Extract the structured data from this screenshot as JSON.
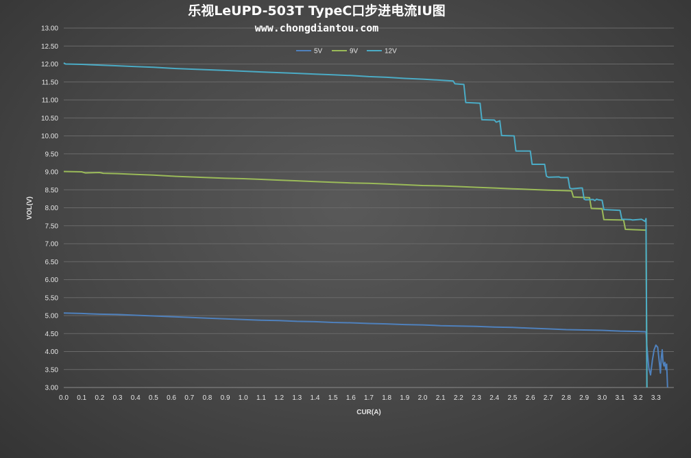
{
  "page": {
    "title": "乐视LeUPD-503T TypeC口步进电流IU图",
    "subtitle": "www.chongdiantou.com"
  },
  "chart_data": {
    "type": "line",
    "title": "乐视LeUPD-503T TypeC口步进电流IU图",
    "xlabel": "CUR(A)",
    "ylabel": "VOL(V)",
    "xlim": [
      0.0,
      3.4
    ],
    "ylim": [
      3.0,
      13.0
    ],
    "grid": true,
    "legend_position": "top-center",
    "x_ticks": [
      "0.0",
      "0.1",
      "0.2",
      "0.3",
      "0.4",
      "0.5",
      "0.6",
      "0.7",
      "0.8",
      "0.9",
      "1.0",
      "1.1",
      "1.2",
      "1.3",
      "1.4",
      "1.5",
      "1.6",
      "1.7",
      "1.8",
      "1.9",
      "2.0",
      "2.1",
      "2.2",
      "2.3",
      "2.4",
      "2.5",
      "2.6",
      "2.7",
      "2.8",
      "2.9",
      "3.0",
      "3.1",
      "3.2",
      "3.3"
    ],
    "y_ticks": [
      "3.00",
      "3.50",
      "4.00",
      "4.50",
      "5.00",
      "5.50",
      "6.00",
      "6.50",
      "7.00",
      "7.50",
      "8.00",
      "8.50",
      "9.00",
      "9.50",
      "10.00",
      "10.50",
      "11.00",
      "11.50",
      "12.00",
      "12.50",
      "13.00"
    ],
    "series": [
      {
        "name": "5V",
        "color": "#4f81bd",
        "points": [
          [
            0.0,
            5.07
          ],
          [
            0.1,
            5.06
          ],
          [
            0.2,
            5.04
          ],
          [
            0.3,
            5.03
          ],
          [
            0.4,
            5.01
          ],
          [
            0.5,
            4.99
          ],
          [
            0.6,
            4.97
          ],
          [
            0.7,
            4.95
          ],
          [
            0.8,
            4.93
          ],
          [
            0.9,
            4.91
          ],
          [
            1.0,
            4.89
          ],
          [
            1.1,
            4.87
          ],
          [
            1.2,
            4.86
          ],
          [
            1.3,
            4.84
          ],
          [
            1.4,
            4.83
          ],
          [
            1.5,
            4.81
          ],
          [
            1.6,
            4.8
          ],
          [
            1.7,
            4.78
          ],
          [
            1.8,
            4.77
          ],
          [
            1.9,
            4.75
          ],
          [
            2.0,
            4.74
          ],
          [
            2.1,
            4.72
          ],
          [
            2.2,
            4.71
          ],
          [
            2.3,
            4.7
          ],
          [
            2.4,
            4.68
          ],
          [
            2.5,
            4.67
          ],
          [
            2.6,
            4.65
          ],
          [
            2.7,
            4.63
          ],
          [
            2.8,
            4.61
          ],
          [
            2.9,
            4.6
          ],
          [
            3.0,
            4.59
          ],
          [
            3.1,
            4.57
          ],
          [
            3.2,
            4.56
          ],
          [
            3.245,
            4.55
          ],
          [
            3.25,
            4.15
          ],
          [
            3.26,
            3.55
          ],
          [
            3.27,
            3.35
          ],
          [
            3.28,
            3.75
          ],
          [
            3.29,
            4.05
          ],
          [
            3.3,
            4.18
          ],
          [
            3.31,
            4.12
          ],
          [
            3.32,
            3.65
          ],
          [
            3.325,
            3.4
          ],
          [
            3.33,
            3.85
          ],
          [
            3.335,
            4.05
          ],
          [
            3.34,
            3.7
          ],
          [
            3.345,
            3.6
          ],
          [
            3.35,
            3.7
          ],
          [
            3.355,
            3.5
          ],
          [
            3.36,
            3.65
          ],
          [
            3.365,
            3.0
          ]
        ]
      },
      {
        "name": "9V",
        "color": "#9bbb59",
        "points": [
          [
            0.0,
            9.01
          ],
          [
            0.1,
            9.0
          ],
          [
            0.12,
            8.97
          ],
          [
            0.2,
            8.98
          ],
          [
            0.22,
            8.96
          ],
          [
            0.3,
            8.95
          ],
          [
            0.4,
            8.93
          ],
          [
            0.5,
            8.91
          ],
          [
            0.6,
            8.88
          ],
          [
            0.7,
            8.86
          ],
          [
            0.8,
            8.84
          ],
          [
            0.9,
            8.82
          ],
          [
            1.0,
            8.81
          ],
          [
            1.1,
            8.79
          ],
          [
            1.2,
            8.77
          ],
          [
            1.3,
            8.75
          ],
          [
            1.4,
            8.73
          ],
          [
            1.5,
            8.71
          ],
          [
            1.6,
            8.69
          ],
          [
            1.7,
            8.68
          ],
          [
            1.8,
            8.66
          ],
          [
            1.9,
            8.64
          ],
          [
            2.0,
            8.62
          ],
          [
            2.1,
            8.61
          ],
          [
            2.2,
            8.59
          ],
          [
            2.3,
            8.57
          ],
          [
            2.4,
            8.55
          ],
          [
            2.5,
            8.53
          ],
          [
            2.6,
            8.51
          ],
          [
            2.7,
            8.49
          ],
          [
            2.83,
            8.47
          ],
          [
            2.84,
            8.3
          ],
          [
            2.93,
            8.28
          ],
          [
            2.94,
            7.98
          ],
          [
            3.0,
            7.97
          ],
          [
            3.01,
            7.67
          ],
          [
            3.12,
            7.66
          ],
          [
            3.13,
            7.4
          ],
          [
            3.24,
            7.38
          ],
          [
            3.245,
            7.38
          ],
          [
            3.25,
            3.0
          ]
        ]
      },
      {
        "name": "12V",
        "color": "#4bacc6",
        "points": [
          [
            0.0,
            12.03
          ],
          [
            0.01,
            12.0
          ],
          [
            0.1,
            11.99
          ],
          [
            0.2,
            11.97
          ],
          [
            0.3,
            11.95
          ],
          [
            0.4,
            11.93
          ],
          [
            0.5,
            11.91
          ],
          [
            0.6,
            11.88
          ],
          [
            0.7,
            11.86
          ],
          [
            0.8,
            11.84
          ],
          [
            0.9,
            11.82
          ],
          [
            1.0,
            11.8
          ],
          [
            1.1,
            11.78
          ],
          [
            1.2,
            11.76
          ],
          [
            1.3,
            11.74
          ],
          [
            1.4,
            11.72
          ],
          [
            1.5,
            11.7
          ],
          [
            1.6,
            11.68
          ],
          [
            1.7,
            11.65
          ],
          [
            1.8,
            11.63
          ],
          [
            1.9,
            11.6
          ],
          [
            2.0,
            11.58
          ],
          [
            2.1,
            11.55
          ],
          [
            2.17,
            11.53
          ],
          [
            2.18,
            11.45
          ],
          [
            2.23,
            11.43
          ],
          [
            2.24,
            10.93
          ],
          [
            2.32,
            10.91
          ],
          [
            2.33,
            10.45
          ],
          [
            2.4,
            10.44
          ],
          [
            2.41,
            10.38
          ],
          [
            2.43,
            10.42
          ],
          [
            2.44,
            10.01
          ],
          [
            2.51,
            10.0
          ],
          [
            2.52,
            9.58
          ],
          [
            2.6,
            9.58
          ],
          [
            2.61,
            9.21
          ],
          [
            2.68,
            9.21
          ],
          [
            2.69,
            8.88
          ],
          [
            2.7,
            8.85
          ],
          [
            2.76,
            8.86
          ],
          [
            2.77,
            8.84
          ],
          [
            2.81,
            8.84
          ],
          [
            2.82,
            8.55
          ],
          [
            2.83,
            8.53
          ],
          [
            2.88,
            8.55
          ],
          [
            2.89,
            8.55
          ],
          [
            2.9,
            8.24
          ],
          [
            2.91,
            8.22
          ],
          [
            2.95,
            8.23
          ],
          [
            2.96,
            8.2
          ],
          [
            2.97,
            8.24
          ],
          [
            2.98,
            8.22
          ],
          [
            3.0,
            8.21
          ],
          [
            3.01,
            7.95
          ],
          [
            3.1,
            7.93
          ],
          [
            3.11,
            7.68
          ],
          [
            3.16,
            7.67
          ],
          [
            3.17,
            7.66
          ],
          [
            3.2,
            7.67
          ],
          [
            3.22,
            7.68
          ],
          [
            3.24,
            7.62
          ],
          [
            3.245,
            7.7
          ],
          [
            3.25,
            3.0
          ]
        ]
      }
    ]
  }
}
